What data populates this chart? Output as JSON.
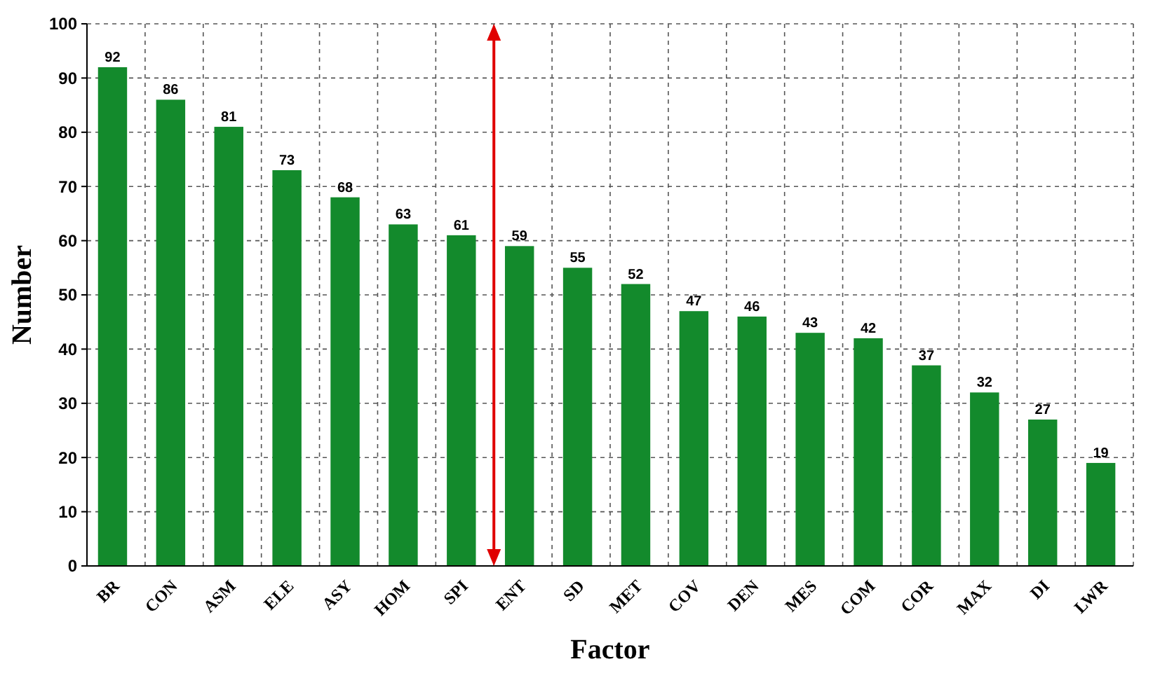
{
  "chart_data": {
    "type": "bar",
    "xlabel": "Factor",
    "ylabel": "Number",
    "categories": [
      "BR",
      "CON",
      "ASM",
      "ELE",
      "ASY",
      "HOM",
      "SPI",
      "ENT",
      "SD",
      "MET",
      "COV",
      "DEN",
      "MES",
      "COM",
      "COR",
      "MAX",
      "DI",
      "LWR"
    ],
    "values": [
      92,
      86,
      81,
      73,
      68,
      63,
      61,
      59,
      55,
      52,
      47,
      46,
      43,
      42,
      37,
      32,
      27,
      19
    ],
    "color": "#138a2c",
    "ylim": [
      0,
      100
    ],
    "yticks": [
      0,
      10,
      20,
      30,
      40,
      50,
      60,
      70,
      80,
      90,
      100
    ],
    "grid": true,
    "data_labels": true
  }
}
